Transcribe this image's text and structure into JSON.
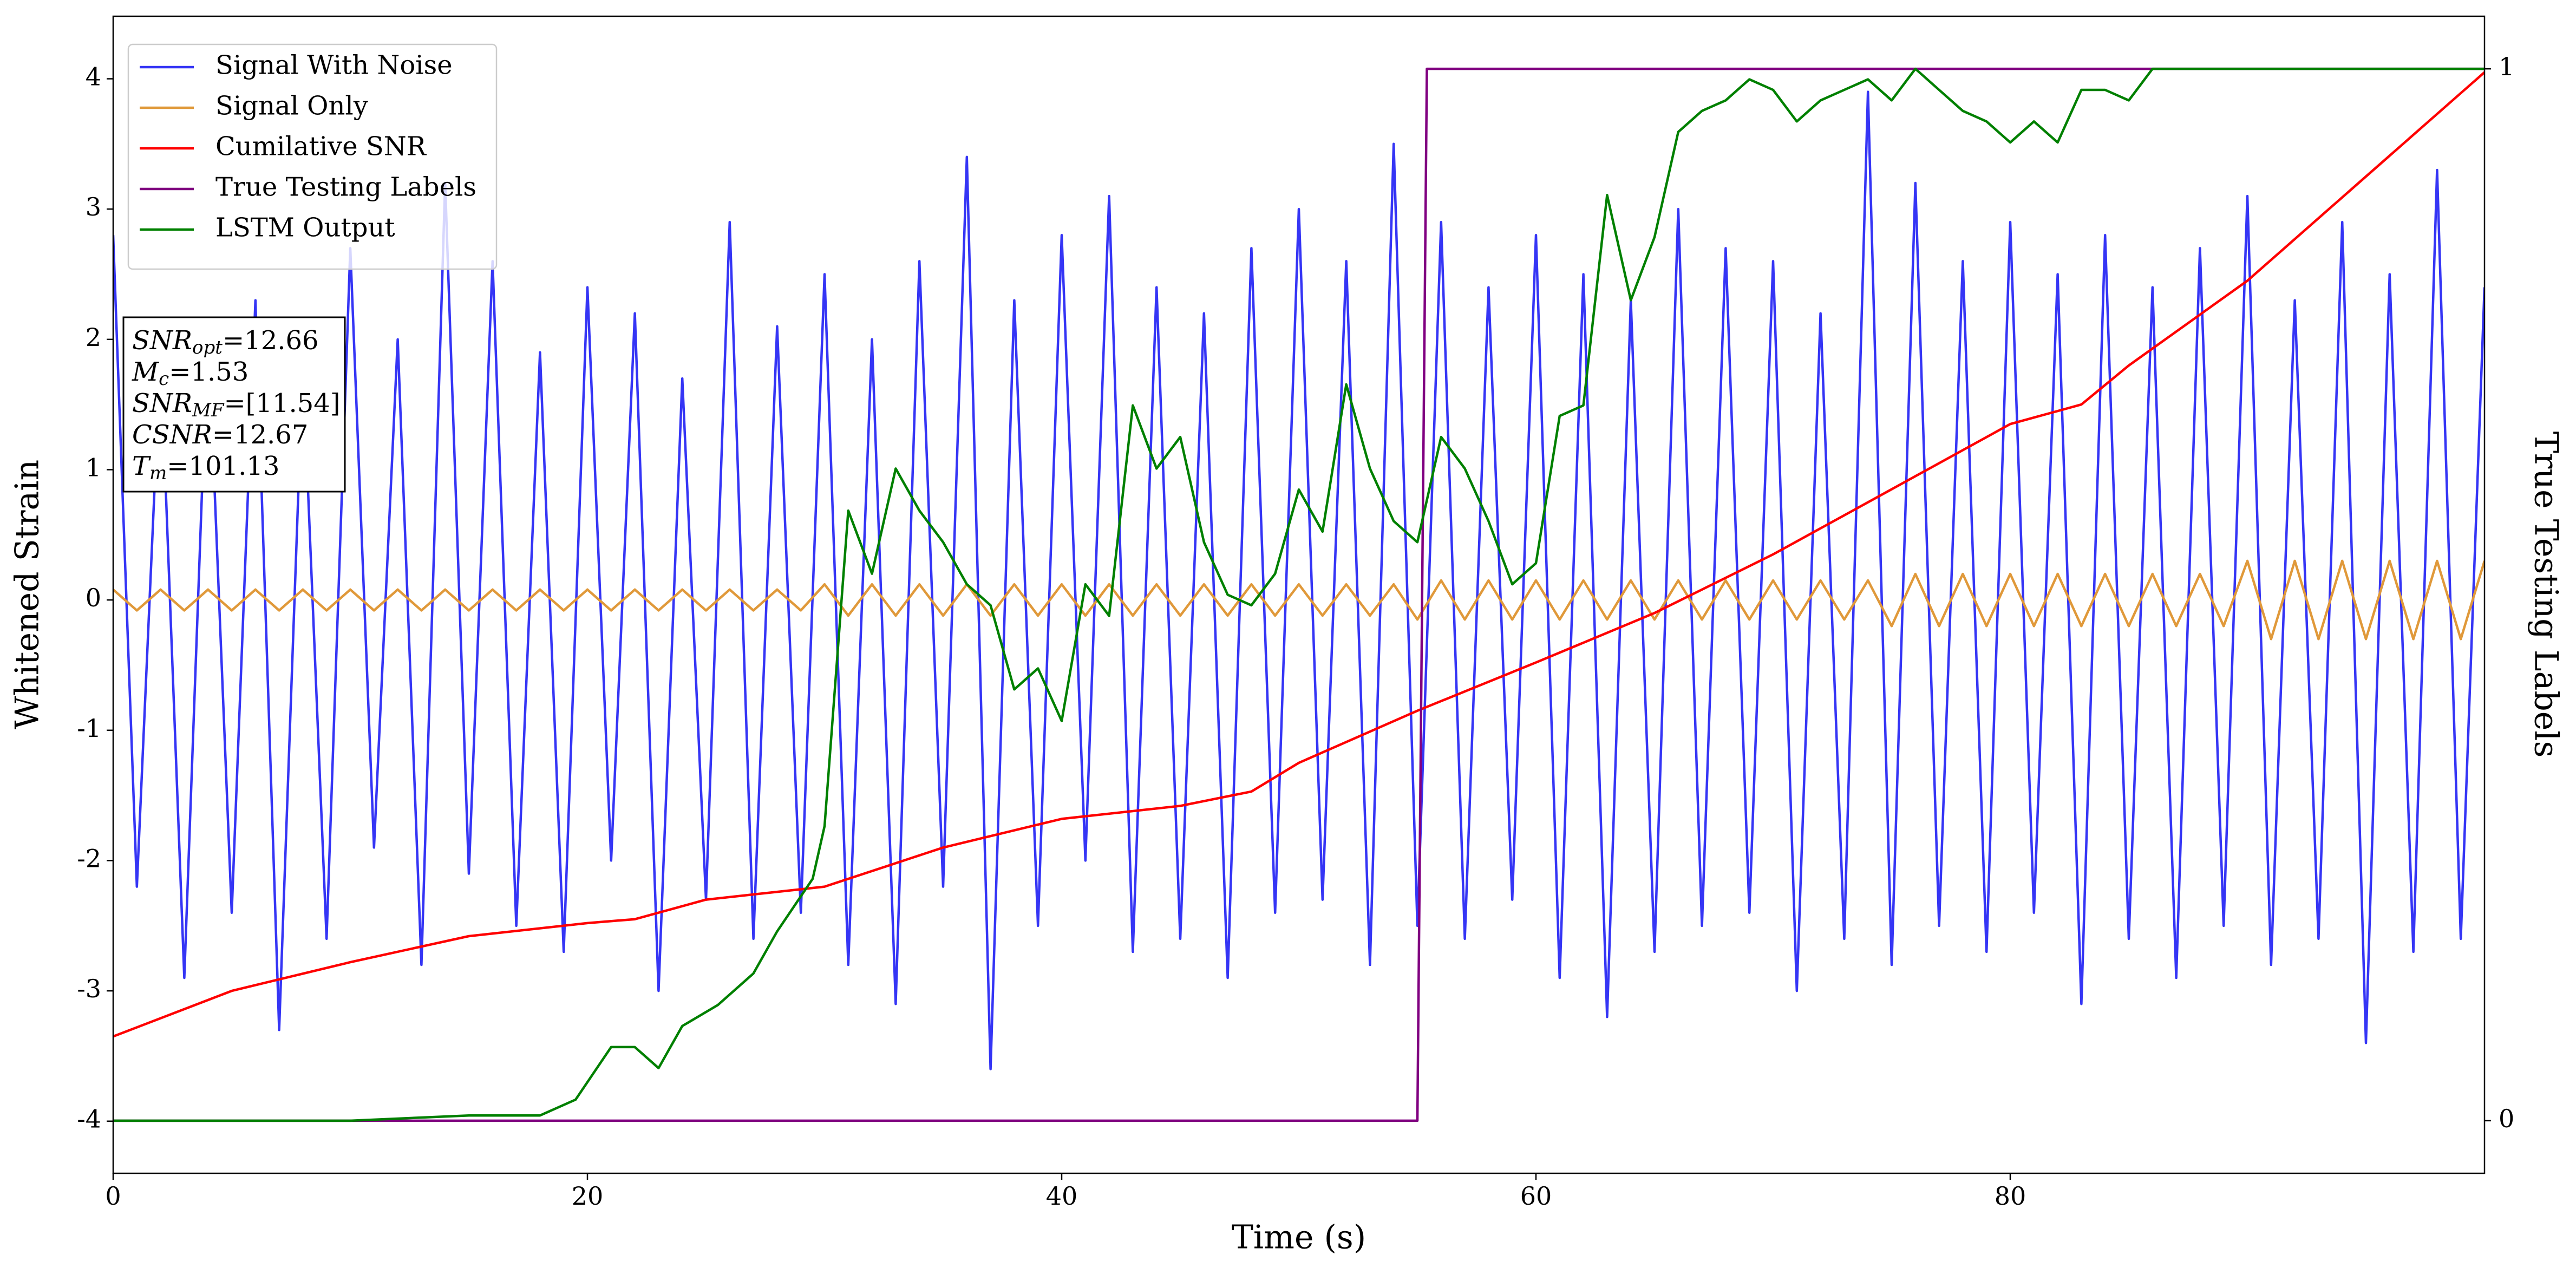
{
  "chart_data": {
    "type": "line",
    "xlabel": "Time (s)",
    "ylabel": "Whitened Strain",
    "y2label": "True Testing Labels",
    "xlim": [
      0,
      100
    ],
    "xticks": [
      0,
      20,
      40,
      60,
      80
    ],
    "ylim": [
      -4.4,
      4.48
    ],
    "yticks": [
      -4,
      -3,
      -2,
      -1,
      0,
      1,
      2,
      3,
      4
    ],
    "y2lim": [
      -0.05,
      1.05
    ],
    "y2ticks": [
      0,
      1
    ],
    "legend": "upper left",
    "x": [
      0,
      1,
      2,
      3,
      4,
      5,
      6,
      7,
      8,
      9,
      10,
      11,
      12,
      13,
      14,
      15,
      16,
      17,
      18,
      19,
      20,
      21,
      22,
      23,
      24,
      25,
      26,
      27,
      28,
      29,
      30,
      31,
      32,
      33,
      34,
      35,
      36,
      37,
      38,
      39,
      40,
      41,
      42,
      43,
      44,
      45,
      46,
      47,
      48,
      49,
      50,
      51,
      52,
      53,
      54,
      55,
      56,
      57,
      58,
      59,
      60,
      61,
      62,
      63,
      64,
      65,
      66,
      67,
      68,
      69,
      70,
      71,
      72,
      73,
      74,
      75,
      76,
      77,
      78,
      79,
      80,
      81,
      82,
      83,
      84,
      85,
      86,
      87,
      88,
      89,
      90,
      91,
      92,
      93,
      94,
      95,
      96,
      97,
      98,
      99,
      100
    ],
    "series": [
      {
        "name": "Signal With Noise",
        "color": "#3535f5",
        "values": [
          2.8,
          -2.2,
          1.9,
          -2.9,
          2.1,
          -2.4,
          2.3,
          -3.3,
          1.8,
          -2.6,
          2.7,
          -1.9,
          2.0,
          -2.8,
          3.2,
          -2.1,
          2.6,
          -2.5,
          1.9,
          -2.7,
          2.4,
          -2.0,
          2.2,
          -3.0,
          1.7,
          -2.3,
          2.9,
          -2.6,
          2.1,
          -2.4,
          2.5,
          -2.8,
          2.0,
          -3.1,
          2.6,
          -2.2,
          3.4,
          -3.6,
          2.3,
          -2.5,
          2.8,
          -2.0,
          3.1,
          -2.7,
          2.4,
          -2.6,
          2.2,
          -2.9,
          2.7,
          -2.4,
          3.0,
          -2.3,
          2.6,
          -2.8,
          3.5,
          -2.5,
          2.9,
          -2.6,
          2.4,
          -2.3,
          2.8,
          -2.9,
          2.5,
          -3.2,
          2.3,
          -2.7,
          3.0,
          -2.5,
          2.7,
          -2.4,
          2.6,
          -3.0,
          2.2,
          -2.6,
          3.9,
          -2.8,
          3.2,
          -2.5,
          2.6,
          -2.7,
          2.9,
          -2.4,
          2.5,
          -3.1,
          2.8,
          -2.6,
          2.4,
          -2.9,
          2.7,
          -2.5,
          3.1,
          -2.8,
          2.3,
          -2.6,
          2.9,
          -3.4,
          2.5,
          -2.7,
          3.3,
          -2.6,
          2.4
        ]
      },
      {
        "name": "Signal Only",
        "color": "#e0993a",
        "values": [
          0.08,
          -0.08,
          0.08,
          -0.08,
          0.08,
          -0.08,
          0.08,
          -0.08,
          0.08,
          -0.08,
          0.08,
          -0.08,
          0.08,
          -0.08,
          0.08,
          -0.08,
          0.08,
          -0.08,
          0.08,
          -0.08,
          0.08,
          -0.08,
          0.08,
          -0.08,
          0.08,
          -0.08,
          0.08,
          -0.08,
          0.08,
          -0.08,
          0.12,
          -0.12,
          0.12,
          -0.12,
          0.12,
          -0.12,
          0.12,
          -0.12,
          0.12,
          -0.12,
          0.12,
          -0.12,
          0.12,
          -0.12,
          0.12,
          -0.12,
          0.12,
          -0.12,
          0.12,
          -0.12,
          0.12,
          -0.12,
          0.12,
          -0.12,
          0.12,
          -0.15,
          0.15,
          -0.15,
          0.15,
          -0.15,
          0.15,
          -0.15,
          0.15,
          -0.15,
          0.15,
          -0.15,
          0.15,
          -0.15,
          0.15,
          -0.15,
          0.15,
          -0.15,
          0.15,
          -0.15,
          0.15,
          -0.2,
          0.2,
          -0.2,
          0.2,
          -0.2,
          0.2,
          -0.2,
          0.2,
          -0.2,
          0.2,
          -0.2,
          0.2,
          -0.2,
          0.2,
          -0.2,
          0.3,
          -0.3,
          0.3,
          -0.3,
          0.3,
          -0.3,
          0.3,
          -0.3,
          0.3,
          -0.3,
          0.3
        ]
      },
      {
        "name": "Cumilative SNR",
        "color": "#ff0000",
        "x": [
          0,
          5,
          10,
          15,
          20,
          22,
          25,
          30,
          35,
          40,
          45,
          48,
          50,
          55,
          60,
          65,
          70,
          75,
          80,
          83,
          85,
          90,
          95,
          100
        ],
        "values": [
          -3.35,
          -3.0,
          -2.78,
          -2.58,
          -2.48,
          -2.45,
          -2.3,
          -2.2,
          -1.9,
          -1.68,
          -1.58,
          -1.47,
          -1.25,
          -0.85,
          -0.48,
          -0.1,
          0.35,
          0.85,
          1.35,
          1.5,
          1.8,
          2.45,
          3.25,
          4.05
        ]
      },
      {
        "name": "True Testing Labels",
        "color": "#800080",
        "axis": "y2",
        "x": [
          0,
          55,
          55.4,
          100
        ],
        "values": [
          0,
          0,
          1,
          1
        ]
      },
      {
        "name": "LSTM Output",
        "color": "#008000",
        "axis": "y2",
        "x": [
          0,
          10,
          15,
          18,
          19.5,
          21,
          22,
          23,
          24,
          25.5,
          27,
          28,
          29.5,
          30,
          31,
          32,
          33,
          34,
          35,
          36,
          37,
          38,
          39,
          40,
          41,
          42,
          43,
          44,
          45,
          46,
          47,
          48,
          49,
          50,
          51,
          52,
          53,
          54,
          55,
          56,
          57,
          58,
          59,
          60,
          61,
          62,
          63,
          64,
          65,
          66,
          67,
          68,
          69,
          70,
          71,
          72,
          73,
          74,
          75,
          76,
          77,
          78,
          79,
          80,
          81,
          82,
          83,
          84,
          85,
          86,
          90,
          100
        ],
        "values": [
          0,
          0,
          0.005,
          0.005,
          0.02,
          0.07,
          0.07,
          0.05,
          0.09,
          0.11,
          0.14,
          0.18,
          0.23,
          0.28,
          0.58,
          0.52,
          0.62,
          0.58,
          0.55,
          0.51,
          0.49,
          0.41,
          0.43,
          0.38,
          0.51,
          0.48,
          0.68,
          0.62,
          0.65,
          0.55,
          0.5,
          0.49,
          0.52,
          0.6,
          0.56,
          0.7,
          0.62,
          0.57,
          0.55,
          0.65,
          0.62,
          0.57,
          0.51,
          0.53,
          0.67,
          0.68,
          0.88,
          0.78,
          0.84,
          0.94,
          0.96,
          0.97,
          0.99,
          0.98,
          0.95,
          0.97,
          0.98,
          0.99,
          0.97,
          1.0,
          0.98,
          0.96,
          0.95,
          0.93,
          0.95,
          0.93,
          0.98,
          0.98,
          0.97,
          1.0,
          1.0,
          1.0
        ]
      }
    ],
    "annotations": [
      {
        "base": "SNR",
        "sub": "opt",
        "text": "=12.66"
      },
      {
        "base": "M",
        "sub": "c",
        "text": "=1.53"
      },
      {
        "base": "SNR",
        "sub": "MF",
        "text": "=[11.54]"
      },
      {
        "base": "CSNR",
        "text": "=12.67"
      },
      {
        "base": "T",
        "sub": "m",
        "text": "=101.13"
      }
    ]
  }
}
